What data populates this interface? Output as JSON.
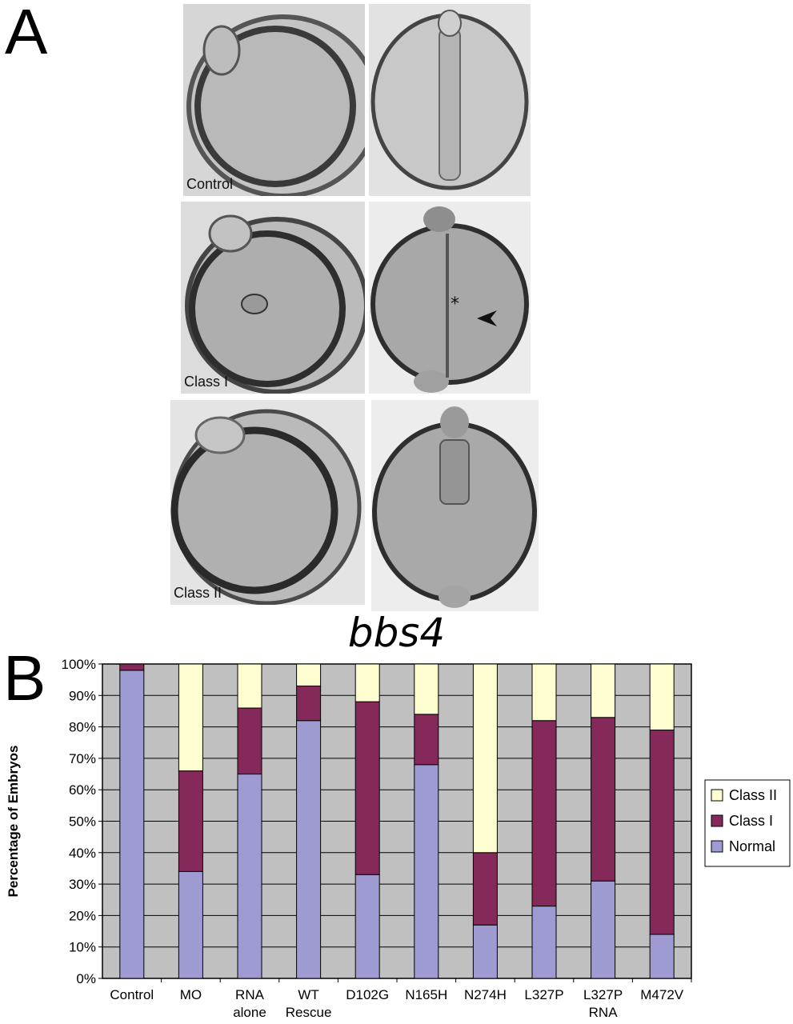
{
  "panel_a": {
    "letter": "A",
    "rows": [
      {
        "label": "Control"
      },
      {
        "label": "Class I"
      },
      {
        "label": "Class II"
      }
    ],
    "annotation_asterisk": "*"
  },
  "panel_b": {
    "letter": "B"
  },
  "chart_data": {
    "type": "bar",
    "stacked": true,
    "title": "bbs4",
    "ylabel": "Percentage of Embryos",
    "xlabel": "",
    "ylim": [
      0,
      100
    ],
    "yticks": [
      "0%",
      "10%",
      "20%",
      "30%",
      "40%",
      "50%",
      "60%",
      "70%",
      "80%",
      "90%",
      "100%"
    ],
    "categories": [
      [
        "Control"
      ],
      [
        "MO"
      ],
      [
        "RNA",
        "alone"
      ],
      [
        "WT",
        "Rescue"
      ],
      [
        "D102G"
      ],
      [
        "N165H"
      ],
      [
        "N274H"
      ],
      [
        "L327P"
      ],
      [
        "L327P",
        "RNA"
      ],
      [
        "M472V"
      ]
    ],
    "series": [
      {
        "name": "Normal",
        "color": "#9e9ad2",
        "values": [
          98,
          34,
          65,
          82,
          33,
          68,
          17,
          23,
          31,
          14
        ]
      },
      {
        "name": "Class I",
        "color": "#85295a",
        "values": [
          2,
          32,
          21,
          11,
          55,
          16,
          23,
          59,
          52,
          65
        ]
      },
      {
        "name": "Class II",
        "color": "#fefed0",
        "values": [
          0,
          34,
          14,
          7,
          12,
          16,
          60,
          18,
          17,
          21
        ]
      }
    ],
    "legend_position": "right",
    "legend_order": [
      "Class II",
      "Class I",
      "Normal"
    ],
    "grid": true,
    "plot_background": "#c0c0c0"
  }
}
